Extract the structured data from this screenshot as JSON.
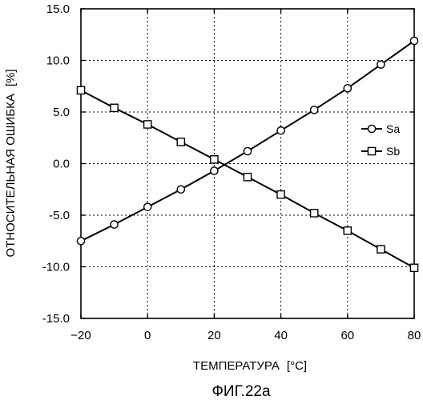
{
  "figure": {
    "caption": "ФИГ.22a"
  },
  "chart_data": {
    "type": "line",
    "title": "",
    "xlabel": "ТЕМПЕРАТУРА",
    "xlabel_unit": "[°C]",
    "ylabel": "ОТНОСИТЕЛЬНАЯ ОШИБКА",
    "ylabel_unit": "[%]",
    "xlim": [
      -20,
      80
    ],
    "ylim": [
      -15,
      15
    ],
    "xticks": [
      -20,
      0,
      20,
      40,
      60,
      80
    ],
    "yticks": [
      -15,
      -10,
      -5,
      0,
      5,
      10,
      15
    ],
    "xtick_labels": [
      "−20",
      "0",
      "20",
      "40",
      "60",
      "80"
    ],
    "ytick_labels": [
      "-15.0",
      "-10.0",
      "-5.0",
      "0.0",
      "5.0",
      "10.0",
      "15.0"
    ],
    "grid": "dotted",
    "legend_position": "right",
    "x": [
      -20,
      -10,
      0,
      10,
      20,
      30,
      40,
      50,
      60,
      70,
      80
    ],
    "series": [
      {
        "name": "Sa",
        "marker": "circle",
        "values": [
          -7.5,
          -5.9,
          -4.2,
          -2.5,
          -0.7,
          1.2,
          3.2,
          5.2,
          7.3,
          9.6,
          11.9
        ]
      },
      {
        "name": "Sb",
        "marker": "square",
        "values": [
          7.1,
          5.4,
          3.8,
          2.1,
          0.4,
          -1.3,
          -3.0,
          -4.8,
          -6.5,
          -8.3,
          -10.1
        ]
      }
    ]
  }
}
